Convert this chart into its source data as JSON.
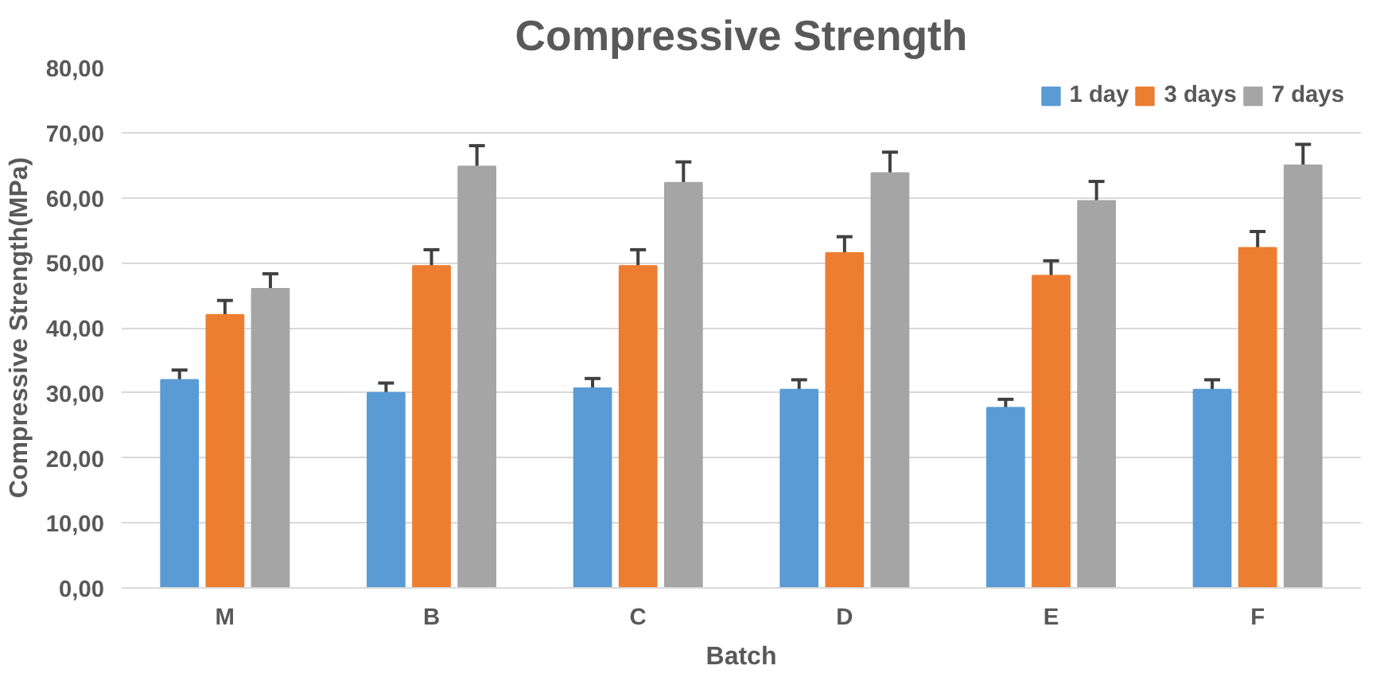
{
  "chart_data": {
    "type": "bar",
    "title": "Compressive Strength",
    "xlabel": "Batch",
    "ylabel": "Compressive Strength(MPa)",
    "categories": [
      "M",
      "B",
      "C",
      "D",
      "E",
      "F"
    ],
    "series": [
      {
        "name": "1 day",
        "color": "#5b9bd5",
        "values": [
          32.0,
          30.0,
          30.7,
          30.5,
          27.7,
          30.5
        ],
        "errors": [
          1.5,
          1.5,
          1.5,
          1.5,
          1.3,
          1.5
        ]
      },
      {
        "name": "3 days",
        "color": "#ed7d31",
        "values": [
          42.0,
          49.5,
          49.5,
          51.5,
          48.0,
          52.3
        ],
        "errors": [
          2.2,
          2.5,
          2.5,
          2.5,
          2.3,
          2.5
        ]
      },
      {
        "name": "7 days",
        "color": "#a5a5a5",
        "values": [
          46.0,
          64.8,
          62.3,
          63.8,
          59.5,
          65.0
        ],
        "errors": [
          2.3,
          3.2,
          3.2,
          3.2,
          3.0,
          3.2
        ]
      }
    ],
    "ylim": [
      0,
      80
    ],
    "yticks": [
      {
        "value": 0,
        "label": "0,00"
      },
      {
        "value": 10,
        "label": "10,00"
      },
      {
        "value": 20,
        "label": "20,00"
      },
      {
        "value": 30,
        "label": "30,00"
      },
      {
        "value": 40,
        "label": "40,00"
      },
      {
        "value": 50,
        "label": "50,00"
      },
      {
        "value": 60,
        "label": "60,00"
      },
      {
        "value": 70,
        "label": "70,00"
      },
      {
        "value": 80,
        "label": "80,00"
      }
    ],
    "grid": "y",
    "legend": "top right"
  }
}
